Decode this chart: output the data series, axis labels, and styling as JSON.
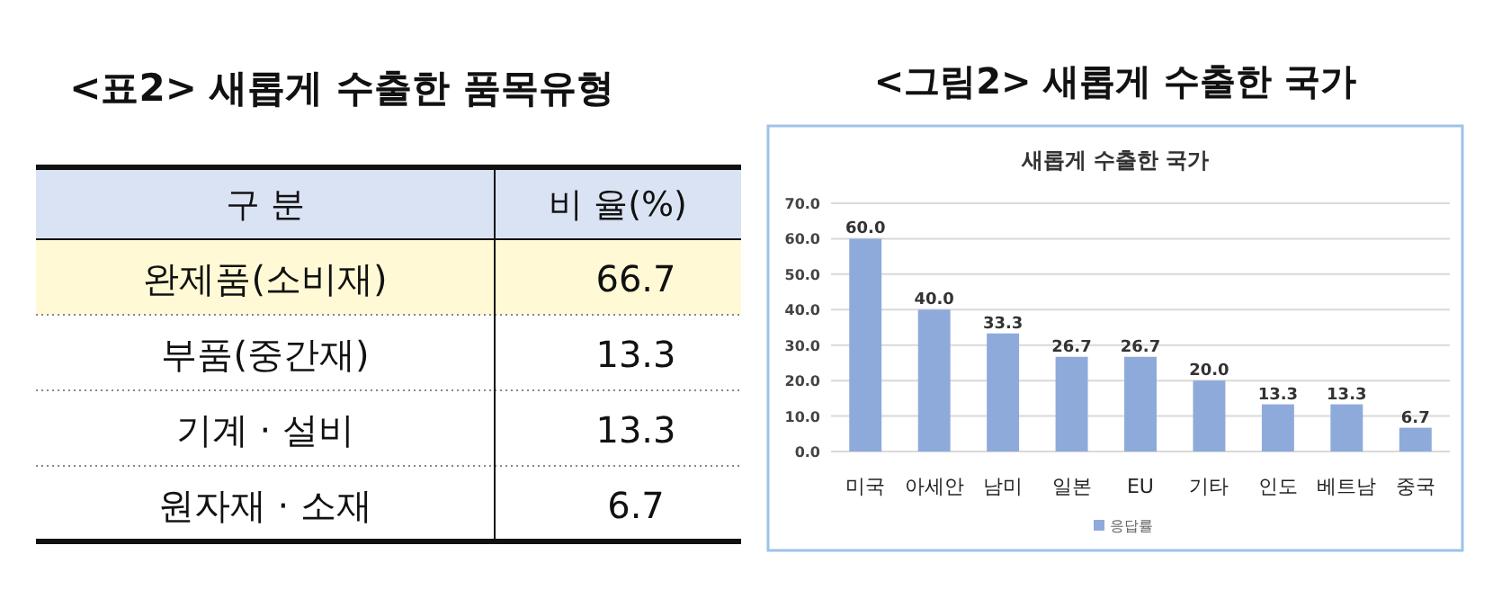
{
  "chart_data": [
    {
      "type": "other",
      "title": "<표2> 새롭게 수출한 품목유형",
      "xlabel": "구 분",
      "ylabel": "비 율(%)",
      "categories": [
        "완제품(소비재)",
        "부품(중간재)",
        "기계 · 설비",
        "원자재 · 소재"
      ],
      "values": [
        66.7,
        13.3,
        13.3,
        6.7
      ],
      "data_labels": true,
      "colors": [
        "#fffad5",
        "#ffffff",
        "#ffffff",
        "#ffffff"
      ]
    },
    {
      "type": "bar",
      "title": "<그림2> 새롭게 수출한 국가",
      "subtitle": "새롭게 수출한 국가",
      "categories": [
        "미국",
        "아세안",
        "남미",
        "일본",
        "EU",
        "기타",
        "인도",
        "베트남",
        "중국"
      ],
      "series": [
        {
          "name": "응답률",
          "color": "#8eaadb",
          "values": [
            60.0,
            40.0,
            33.3,
            26.7,
            26.7,
            20.0,
            13.3,
            13.3,
            6.7
          ],
          "value_labels": [
            "60.0",
            "40.0",
            "33.3",
            "26.7",
            "26.7",
            "20.0",
            "13.3",
            "13.3",
            "6.7"
          ]
        }
      ],
      "ylim": [
        0,
        70
      ],
      "yticks": [
        {
          "value": 0,
          "label": "0.0"
        },
        {
          "value": 10,
          "label": "10.0"
        },
        {
          "value": 20,
          "label": "20.0"
        },
        {
          "value": 30,
          "label": "30.0"
        },
        {
          "value": 40,
          "label": "40.0"
        },
        {
          "value": 50,
          "label": "50.0"
        },
        {
          "value": 60,
          "label": "60.0"
        },
        {
          "value": 70,
          "label": "70.0"
        }
      ],
      "grid": "y",
      "legend": "bottom"
    }
  ]
}
